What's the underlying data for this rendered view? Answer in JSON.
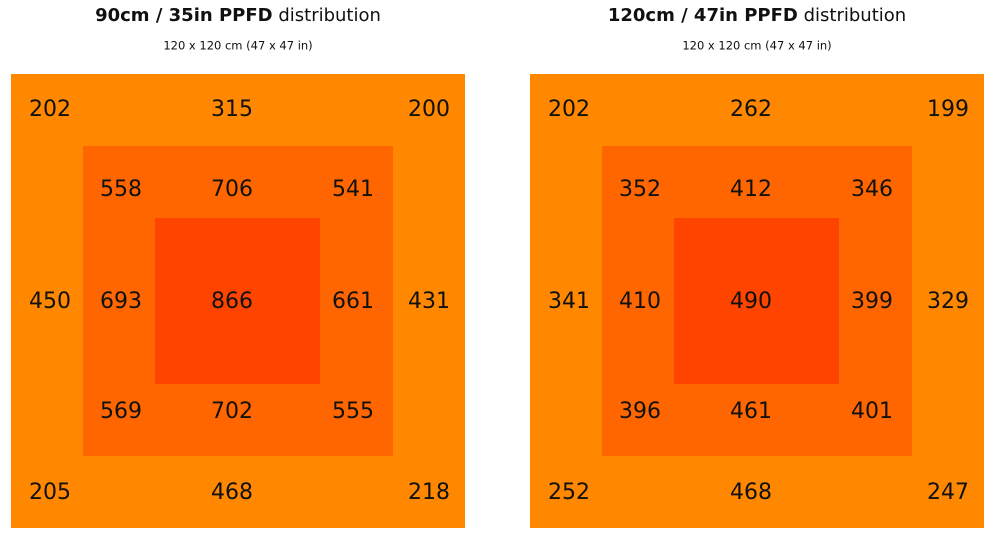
{
  "panels": [
    {
      "title": {
        "bold": "90cm / 35in PPFD",
        "normal": "distribution"
      },
      "subtitle": "120 x 120 cm (47 x 47 in)",
      "rows": [
        [
          202,
          315,
          200
        ],
        [
          558,
          706,
          541
        ],
        [
          450,
          693,
          866,
          661,
          431
        ],
        [
          569,
          702,
          555
        ],
        [
          205,
          468,
          218
        ]
      ]
    },
    {
      "title": {
        "bold": "120cm / 47in PPFD",
        "normal": "distribution"
      },
      "subtitle": "120 x 120 cm (47 x 47 in)",
      "rows": [
        [
          202,
          262,
          199
        ],
        [
          352,
          412,
          346
        ],
        [
          341,
          410,
          490,
          399,
          329
        ],
        [
          396,
          461,
          401
        ],
        [
          252,
          468,
          247
        ]
      ]
    }
  ]
}
